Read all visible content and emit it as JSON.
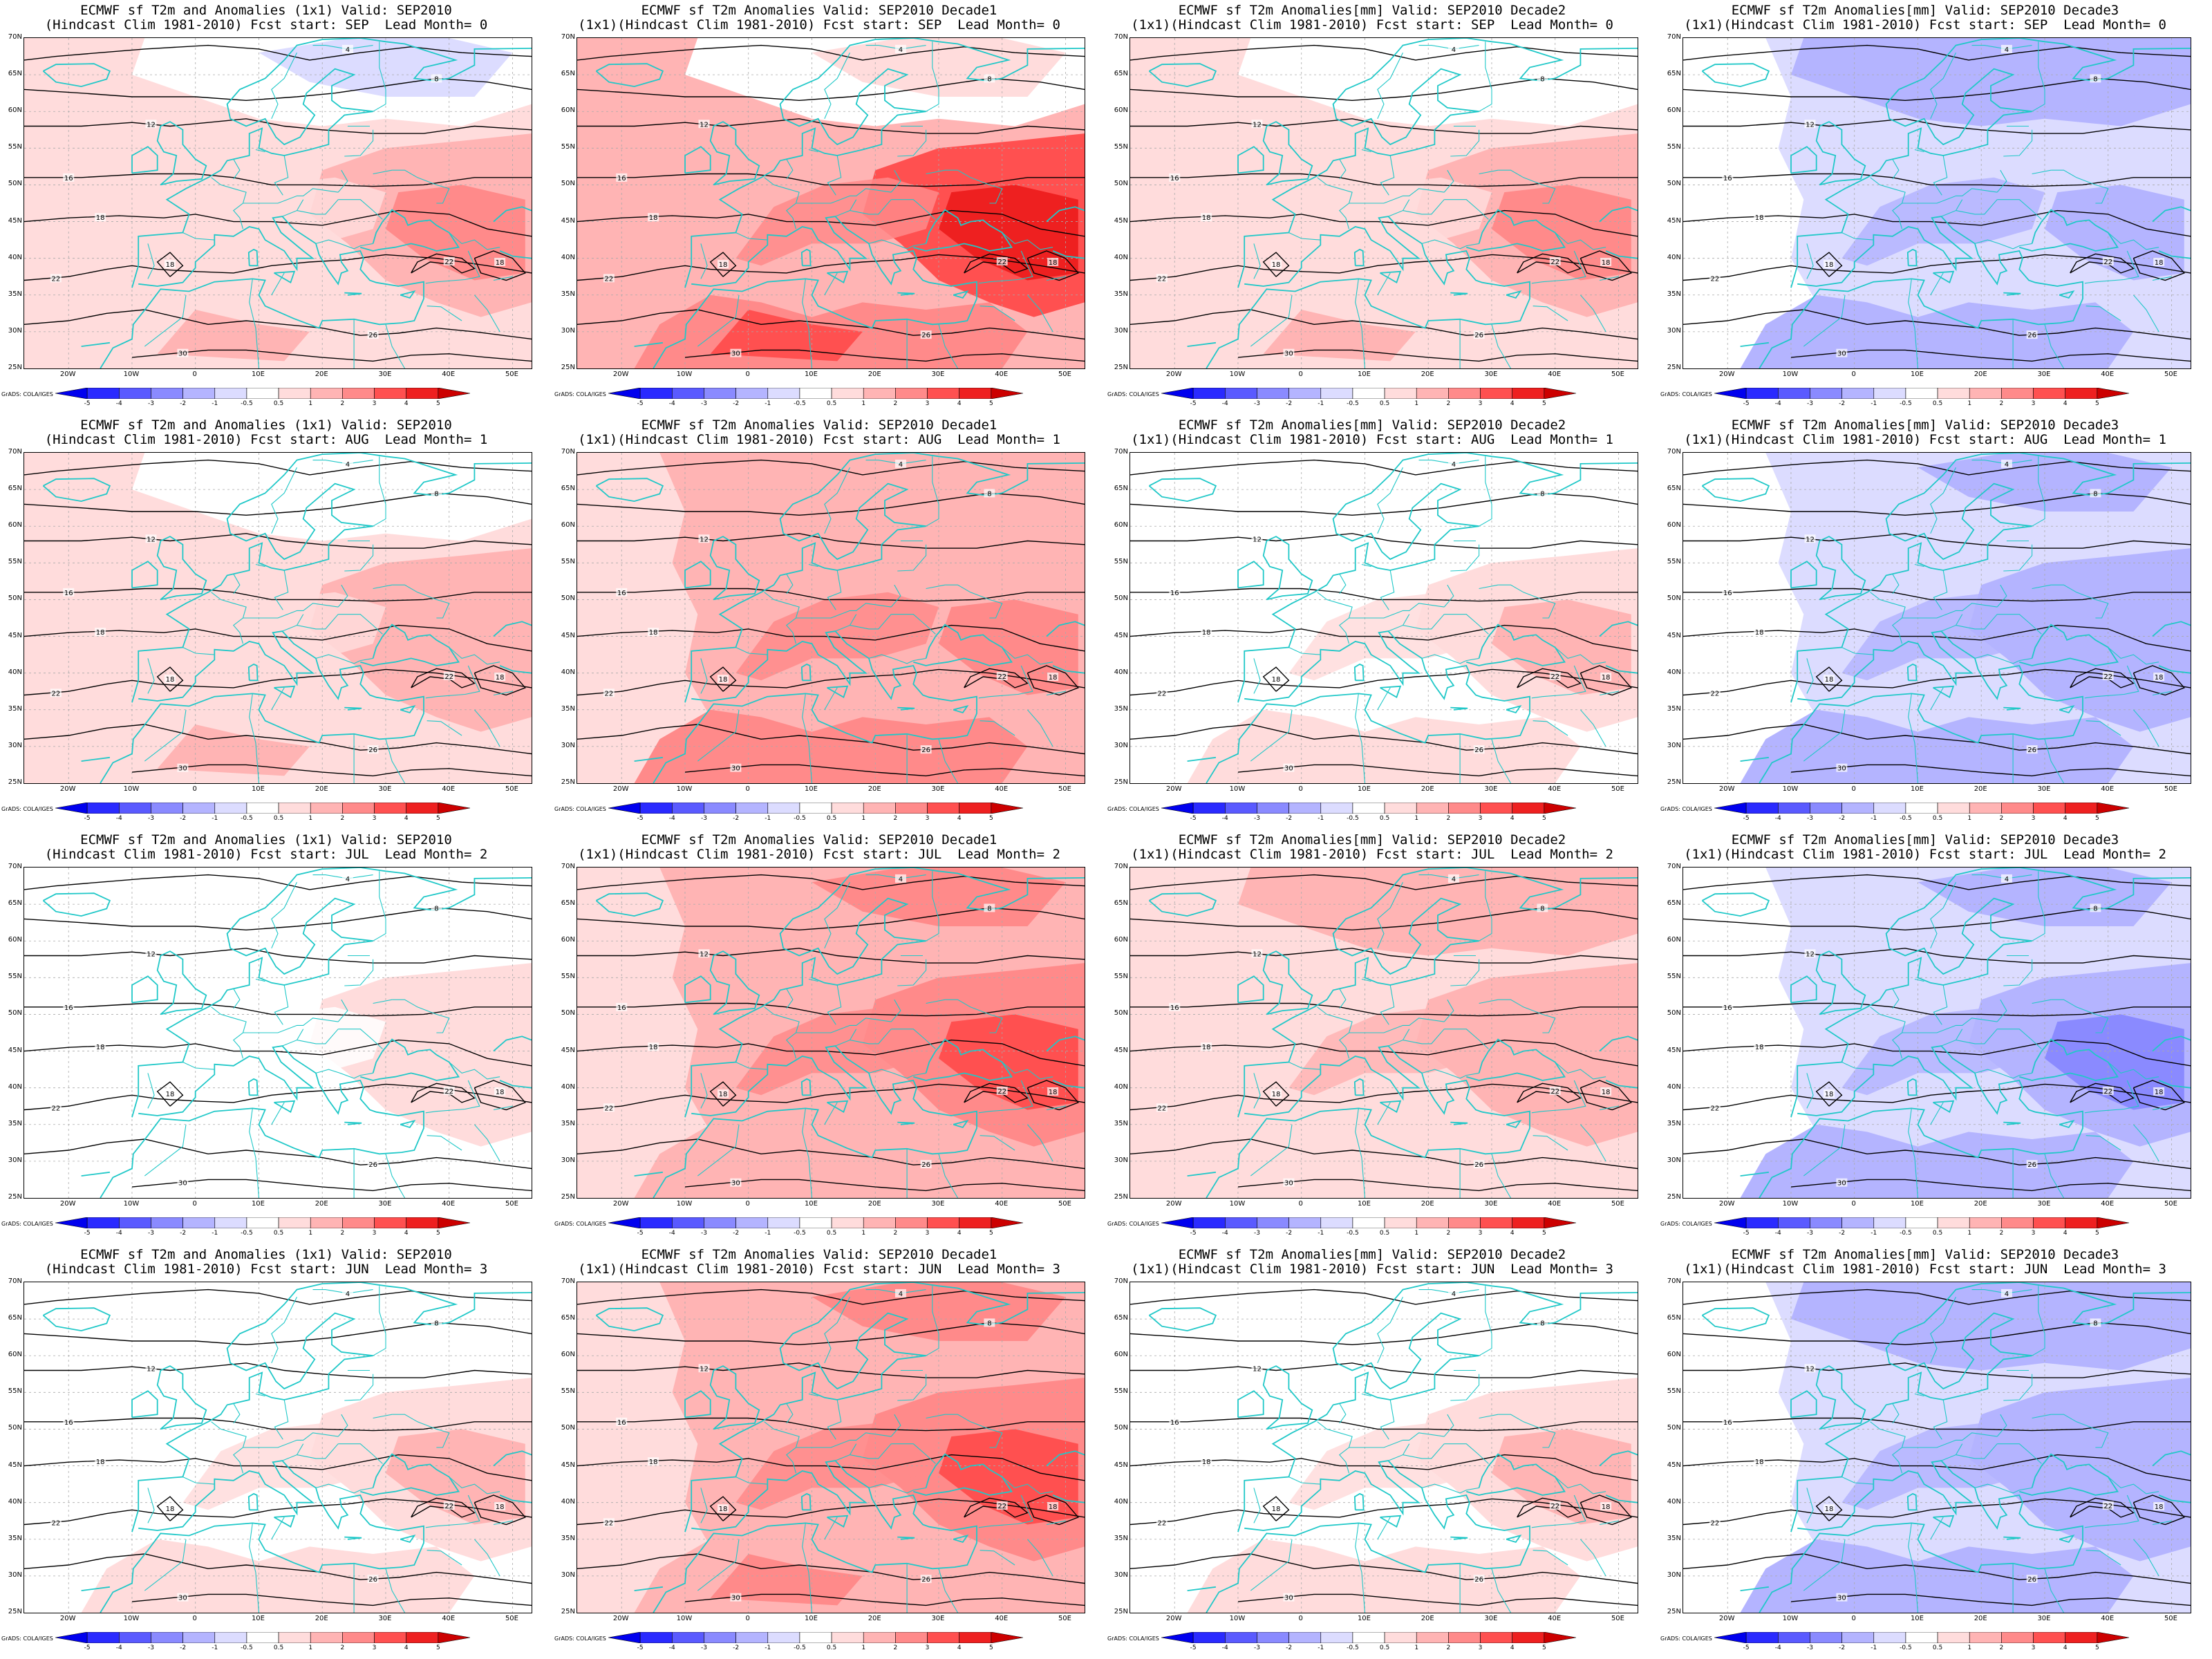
{
  "lat_labels": [
    "70N",
    "65N",
    "60N",
    "55N",
    "50N",
    "45N",
    "40N",
    "35N",
    "30N",
    "25N"
  ],
  "lon_labels": [
    "20W",
    "10W",
    "0",
    "10E",
    "20E",
    "30E",
    "40E",
    "50E"
  ],
  "colorbar": {
    "labels": [
      "-5",
      "-4",
      "-3",
      "-2",
      "-1",
      "-0.5",
      "0.5",
      "1",
      "2",
      "3",
      "4",
      "5"
    ],
    "colors": [
      "#0000ee",
      "#2a2aff",
      "#5a5aff",
      "#8a8aff",
      "#b4b4ff",
      "#dcdcff",
      "#ffffff",
      "#ffdcdc",
      "#ffb4b4",
      "#ff8a8a",
      "#ff5050",
      "#ee2020",
      "#cc0000"
    ]
  },
  "credit": "GrADS: COLA/IGES",
  "colors": {
    "coast": "#20c8c8",
    "contour": "#000000",
    "grid": "#aaaaaa"
  },
  "panels": [
    {
      "title1": "ECMWF sf T2m and Anomalies (1x1) Valid: SEP2010",
      "title2": "(Hindcast Clim 1981-2010) Fcst start: SEP  Lead Month= 0",
      "contour_labels": [
        "4",
        "8",
        "12",
        "16",
        "18",
        "22",
        "26",
        "30"
      ],
      "anomaly": {
        "w": 0.9,
        "n": -0.6,
        "e": 2.4,
        "s": 1.2
      }
    },
    {
      "title1": "ECMWF sf T2m Anomalies Valid: SEP2010 Decade1",
      "title2": "(1x1)(Hindcast Clim 1981-2010) Fcst start: SEP  Lead Month= 0",
      "contour_labels": [
        "4",
        "8",
        "12",
        "16",
        "18",
        "22",
        "26",
        "30"
      ],
      "anomaly": {
        "w": 1.6,
        "n": 0.6,
        "e": 4.2,
        "s": 3.0
      }
    },
    {
      "title1": "ECMWF sf T2m Anomalies[mm] Valid: SEP2010 Decade2",
      "title2": "(1x1)(Hindcast Clim 1981-2010) Fcst start: SEP  Lead Month= 0",
      "contour_labels": [
        "4",
        "8",
        "12",
        "16",
        "18",
        "22",
        "26",
        "30"
      ],
      "anomaly": {
        "w": 0.9,
        "n": -0.3,
        "e": 2.1,
        "s": 1.2
      }
    },
    {
      "title1": "ECMWF sf T2m Anomalies[mm] Valid: SEP2010 Decade3",
      "title2": "(1x1)(Hindcast Clim 1981-2010) Fcst start: SEP  Lead Month= 0",
      "contour_labels": [
        "4",
        "8",
        "12",
        "16",
        "18",
        "22",
        "26",
        "30"
      ],
      "anomaly": {
        "w": -0.4,
        "n": -1.8,
        "e": -1.2,
        "s": -1.5
      }
    },
    {
      "title1": "ECMWF sf T2m and Anomalies (1x1) Valid: SEP2010",
      "title2": "(Hindcast Clim 1981-2010) Fcst start: AUG  Lead Month= 1",
      "contour_labels": [
        "4",
        "8",
        "12",
        "16",
        "18",
        "22",
        "26",
        "30"
      ],
      "anomaly": {
        "w": 0.7,
        "n": 0.3,
        "e": 1.6,
        "s": 1.0
      }
    },
    {
      "title1": "ECMWF sf T2m Anomalies Valid: SEP2010 Decade1",
      "title2": "(1x1)(Hindcast Clim 1981-2010) Fcst start: AUG  Lead Month= 1",
      "contour_labels": [
        "4",
        "8",
        "12",
        "16",
        "18",
        "22",
        "26",
        "30"
      ],
      "anomaly": {
        "w": 1.2,
        "n": 1.6,
        "e": 2.6,
        "s": 2.8
      }
    },
    {
      "title1": "ECMWF sf T2m Anomalies[mm] Valid: SEP2010 Decade2",
      "title2": "(1x1)(Hindcast Clim 1981-2010) Fcst start: AUG  Lead Month= 1",
      "contour_labels": [
        "4",
        "8",
        "12",
        "16",
        "18",
        "22",
        "26",
        "30"
      ],
      "anomaly": {
        "w": 0.6,
        "n": 0.3,
        "e": 1.3,
        "s": 0.9
      }
    },
    {
      "title1": "ECMWF sf T2m Anomalies[mm] Valid: SEP2010 Decade3",
      "title2": "(1x1)(Hindcast Clim 1981-2010) Fcst start: AUG  Lead Month= 1",
      "contour_labels": [
        "4",
        "8",
        "12",
        "16",
        "18",
        "22",
        "26",
        "30"
      ],
      "anomaly": {
        "w": -0.6,
        "n": -1.2,
        "e": -1.6,
        "s": -1.5
      }
    },
    {
      "title1": "ECMWF sf T2m and Anomalies (1x1) Valid: SEP2010",
      "title2": "(Hindcast Clim 1981-2010) Fcst start: JUL  Lead Month= 2",
      "contour_labels": [
        "4",
        "8",
        "12",
        "16",
        "18",
        "22",
        "26",
        "30"
      ],
      "anomaly": {
        "w": 0.6,
        "n": 0.2,
        "e": 0.9,
        "s": -0.5
      }
    },
    {
      "title1": "ECMWF sf T2m Anomalies Valid: SEP2010 Decade1",
      "title2": "(1x1)(Hindcast Clim 1981-2010) Fcst start: JUL  Lead Month= 2",
      "contour_labels": [
        "4",
        "8",
        "12",
        "16",
        "18",
        "22",
        "26",
        "30"
      ],
      "anomaly": {
        "w": 1.2,
        "n": 2.2,
        "e": 3.0,
        "s": 1.8
      }
    },
    {
      "title1": "ECMWF sf T2m Anomalies[mm] Valid: SEP2010 Decade2",
      "title2": "(1x1)(Hindcast Clim 1981-2010) Fcst start: JUL  Lead Month= 2",
      "contour_labels": [
        "4",
        "8",
        "12",
        "16",
        "18",
        "22",
        "26",
        "30"
      ],
      "anomaly": {
        "w": 0.7,
        "n": 1.4,
        "e": 1.8,
        "s": 0.8
      }
    },
    {
      "title1": "ECMWF sf T2m Anomalies[mm] Valid: SEP2010 Decade3",
      "title2": "(1x1)(Hindcast Clim 1981-2010) Fcst start: JUL  Lead Month= 2",
      "contour_labels": [
        "4",
        "8",
        "12",
        "16",
        "18",
        "22",
        "26",
        "30"
      ],
      "anomaly": {
        "w": -0.5,
        "n": -1.3,
        "e": -2.2,
        "s": -1.6
      }
    },
    {
      "title1": "ECMWF sf T2m and Anomalies (1x1) Valid: SEP2010",
      "title2": "(Hindcast Clim 1981-2010) Fcst start: JUN  Lead Month= 3",
      "contour_labels": [
        "4",
        "8",
        "12",
        "16",
        "18",
        "22",
        "26",
        "30"
      ],
      "anomaly": {
        "w": 0.6,
        "n": 0.3,
        "e": 1.0,
        "s": 0.8
      }
    },
    {
      "title1": "ECMWF sf T2m Anomalies Valid: SEP2010 Decade1",
      "title2": "(1x1)(Hindcast Clim 1981-2010) Fcst start: JUN  Lead Month= 3",
      "contour_labels": [
        "4",
        "8",
        "12",
        "16",
        "18",
        "22",
        "26",
        "30"
      ],
      "anomaly": {
        "w": 1.0,
        "n": 2.2,
        "e": 3.4,
        "s": 2.0
      }
    },
    {
      "title1": "ECMWF sf T2m Anomalies[mm] Valid: SEP2010 Decade2",
      "title2": "(1x1)(Hindcast Clim 1981-2010) Fcst start: JUN  Lead Month= 3",
      "contour_labels": [
        "4",
        "8",
        "12",
        "16",
        "18",
        "22",
        "26",
        "30"
      ],
      "anomaly": {
        "w": 0.6,
        "n": 0.4,
        "e": 1.1,
        "s": 0.9
      }
    },
    {
      "title1": "ECMWF sf T2m Anomalies[mm] Valid: SEP2010 Decade3",
      "title2": "(1x1)(Hindcast Clim 1981-2010) Fcst start: JUN  Lead Month= 3",
      "contour_labels": [
        "4",
        "8",
        "12",
        "16",
        "18",
        "22",
        "26",
        "30"
      ],
      "anomaly": {
        "w": -0.5,
        "n": -2.0,
        "e": -1.6,
        "s": -1.4
      }
    }
  ]
}
